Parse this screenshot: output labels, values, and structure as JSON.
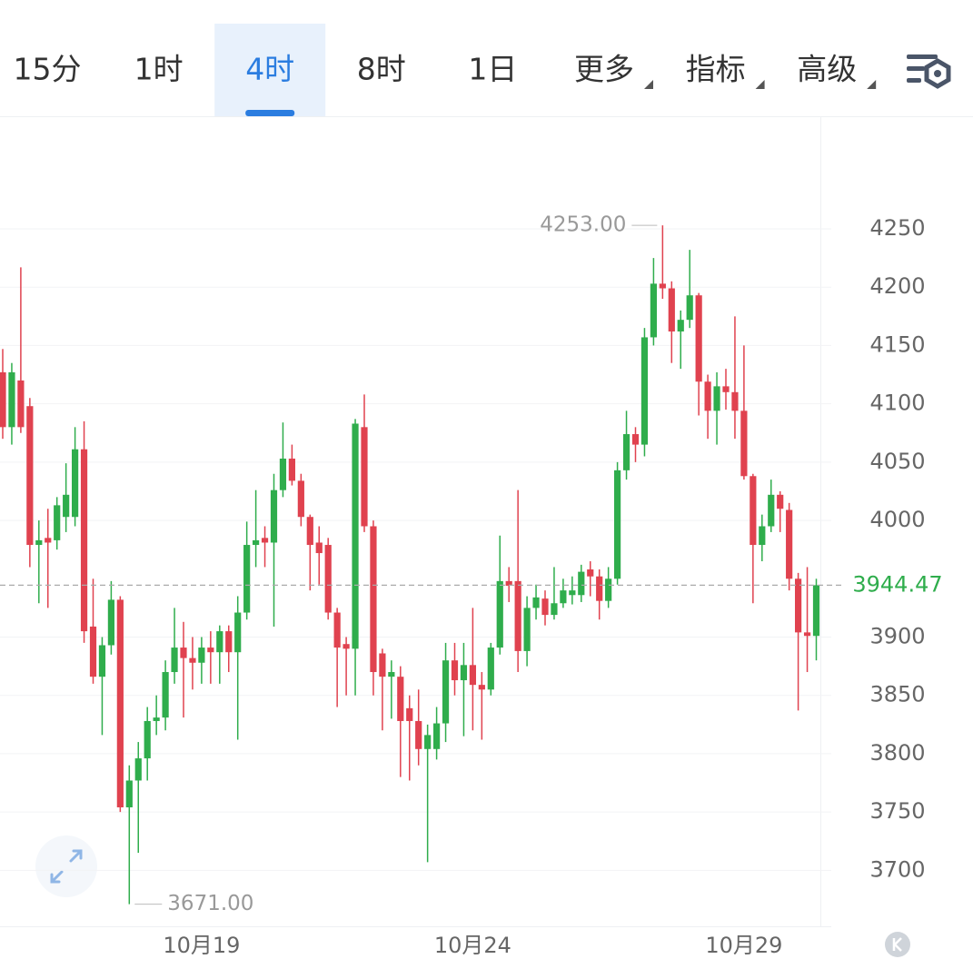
{
  "toolbar": {
    "tabs": [
      "15分",
      "1时",
      "4时",
      "8时",
      "1日",
      "更多",
      "指标",
      "高级"
    ],
    "active_tab": 2,
    "dropdown_tabs": [
      5,
      6,
      7
    ]
  },
  "chart_data": {
    "type": "candlestick",
    "categories": [
      null,
      null,
      null,
      null,
      null,
      null,
      null,
      null,
      null,
      null,
      null,
      null,
      null,
      null,
      null,
      null,
      null,
      null,
      null,
      null,
      null,
      null,
      "10月19",
      null,
      null,
      null,
      null,
      null,
      null,
      null,
      null,
      null,
      null,
      null,
      null,
      null,
      null,
      null,
      null,
      null,
      null,
      null,
      null,
      null,
      null,
      null,
      null,
      null,
      null,
      null,
      null,
      null,
      "10月24",
      null,
      null,
      null,
      null,
      null,
      null,
      null,
      null,
      null,
      null,
      null,
      null,
      null,
      null,
      null,
      null,
      null,
      null,
      null,
      null,
      null,
      null,
      null,
      null,
      null,
      null,
      null,
      null,
      null,
      "10月29",
      null,
      null,
      null,
      null,
      null,
      null,
      null,
      null
    ],
    "open": [
      4127,
      4080,
      4120,
      4098,
      3979,
      3985,
      3983,
      4003,
      4003,
      4061,
      3909,
      3866,
      3893,
      3932,
      3754,
      3777,
      3796,
      3828,
      3831,
      3870,
      3891,
      3882,
      3878,
      3891,
      3887,
      3905,
      3887,
      3921,
      3979,
      3985,
      3981,
      4026,
      4053,
      4034,
      4003,
      3981,
      3979,
      3921,
      3894,
      3890,
      4080,
      3995,
      3886,
      3866,
      3866,
      3839,
      3828,
      3804,
      3804,
      3826,
      3880,
      3863,
      3876,
      3859,
      3855,
      3891,
      3948,
      3948,
      3888,
      3925,
      3933,
      3919,
      3929,
      3936,
      3936,
      3958,
      3952,
      3931,
      3950,
      4043,
      4074,
      4065,
      4157,
      4203,
      4199,
      4162,
      4172,
      4193,
      4119,
      4094,
      4115,
      4110,
      4094,
      4038,
      3979,
      3995,
      4022,
      4009,
      3950,
      3904,
      3901
    ],
    "high": [
      4147,
      4135,
      4217,
      4105,
      4000,
      4010,
      4020,
      4049,
      4080,
      4085,
      3950,
      3900,
      3948,
      3935,
      3790,
      3810,
      3840,
      3850,
      3880,
      3925,
      3913,
      3900,
      3900,
      3905,
      3910,
      3910,
      3935,
      3999,
      4026,
      3995,
      4040,
      4084,
      4065,
      4040,
      4005,
      3995,
      3985,
      3925,
      3900,
      4087,
      4108,
      4000,
      3890,
      3880,
      3875,
      3850,
      3855,
      3825,
      3840,
      3895,
      3895,
      3895,
      3925,
      3870,
      3895,
      3987,
      3960,
      4026,
      3935,
      3945,
      3940,
      3960,
      3950,
      3952,
      3962,
      3965,
      3958,
      3960,
      4050,
      4094,
      4080,
      4165,
      4225,
      4253,
      4205,
      4180,
      4232,
      4195,
      4125,
      4127,
      4130,
      4175,
      4150,
      4040,
      4005,
      4035,
      4025,
      4015,
      3955,
      3960,
      3950
    ],
    "low": [
      4070,
      4065,
      4075,
      3960,
      3929,
      3925,
      3975,
      3990,
      3995,
      3895,
      3860,
      3816,
      3885,
      3750,
      3671,
      3715,
      3777,
      3816,
      3820,
      3860,
      3831,
      3855,
      3860,
      3860,
      3860,
      3870,
      3812,
      3915,
      3960,
      3960,
      3909,
      4020,
      4030,
      3995,
      3940,
      3945,
      3915,
      3840,
      3850,
      3850,
      3990,
      3850,
      3820,
      3830,
      3780,
      3777,
      3790,
      3707,
      3795,
      3810,
      3850,
      3815,
      3820,
      3812,
      3850,
      3885,
      3930,
      3870,
      3875,
      3915,
      3910,
      3915,
      3925,
      3928,
      3930,
      3935,
      3915,
      3925,
      3945,
      4035,
      4050,
      4055,
      4150,
      4190,
      4135,
      4130,
      4165,
      4090,
      4070,
      4065,
      4095,
      4070,
      4035,
      3929,
      3965,
      3990,
      3990,
      3940,
      3837,
      3870,
      3880
    ],
    "close": [
      4080,
      4127,
      4080,
      3979,
      3983,
      3981,
      4013,
      4022,
      4061,
      3905,
      3866,
      3893,
      3932,
      3754,
      3777,
      3796,
      3828,
      3831,
      3870,
      3891,
      3882,
      3878,
      3891,
      3887,
      3905,
      3887,
      3921,
      3979,
      3983,
      3981,
      4026,
      4053,
      4034,
      4003,
      3979,
      3972,
      3921,
      3891,
      3890,
      4083,
      3995,
      3870,
      3866,
      3870,
      3828,
      3828,
      3804,
      3816,
      3826,
      3880,
      3863,
      3876,
      3859,
      3855,
      3891,
      3948,
      3944,
      3888,
      3925,
      3934,
      3919,
      3929,
      3940,
      3940,
      3956,
      3952,
      3931,
      3950,
      4043,
      4074,
      4065,
      4157,
      4203,
      4199,
      4162,
      4172,
      4193,
      4119,
      4094,
      4115,
      4110,
      4094,
      4038,
      3979,
      3995,
      4022,
      4010,
      3950,
      3904,
      3901,
      3944.47
    ],
    "up_color": "#2fad4c",
    "down_color": "#e0424f",
    "ylim": [
      3652,
      4345
    ],
    "yticks": [
      3700,
      3750,
      3800,
      3850,
      3900,
      4000,
      4050,
      4100,
      4150,
      4200,
      4250
    ],
    "grid": true,
    "annotations": [
      {
        "text": "4253.00",
        "value": 4253
      },
      {
        "text": "3671.00",
        "value": 3671
      }
    ],
    "last_price": 3944.47
  }
}
